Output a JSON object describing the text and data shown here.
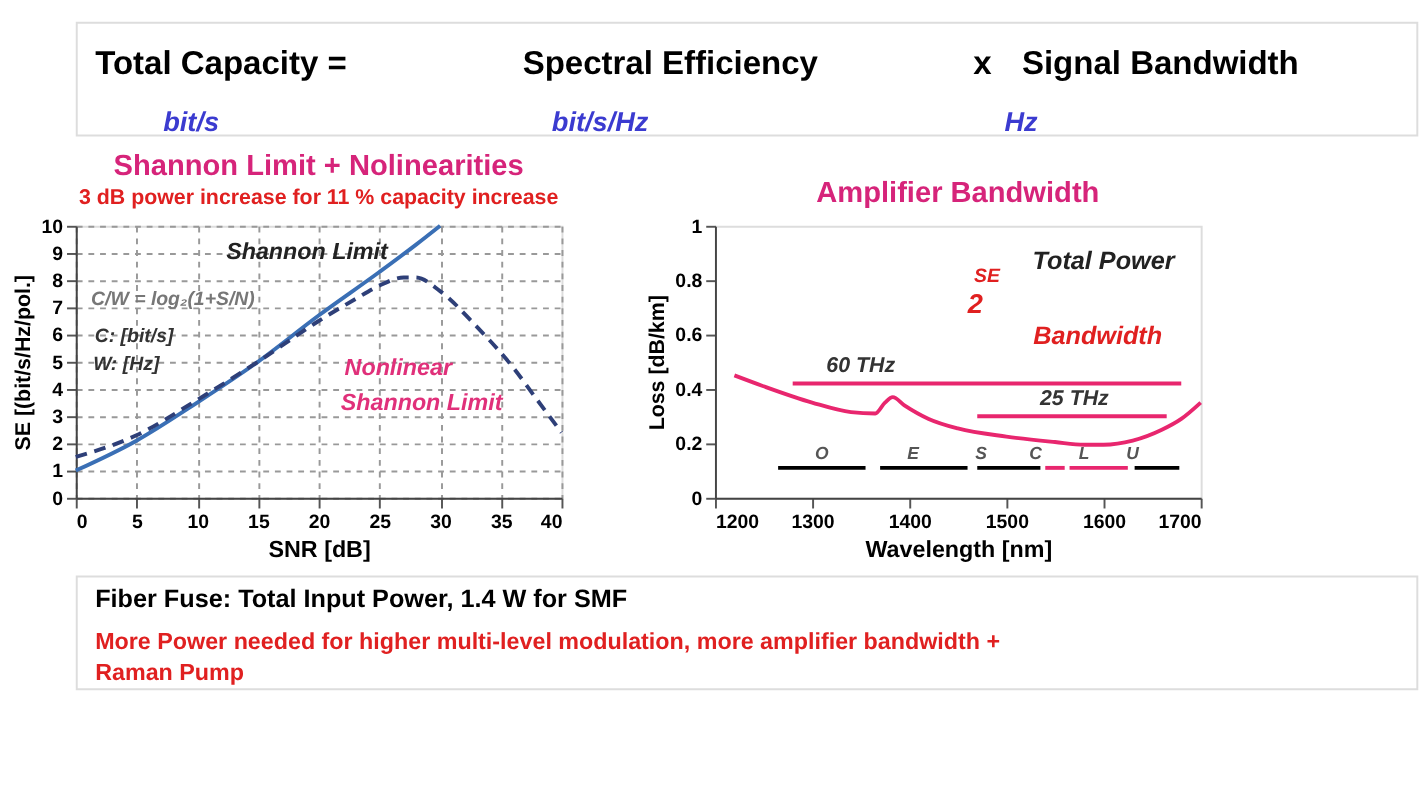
{
  "chart_data": [
    {
      "type": "other",
      "annotations": [
        "Total Capacity =",
        "Spectral Efficiency",
        "x",
        "Signal Bandwidth",
        "bit/s",
        "bit/s/Hz",
        "Hz"
      ]
    },
    {
      "type": "line",
      "title": "Shannon Limit + Nolinearities",
      "subtitle": "3 dB power increase for 11 % capacity increase",
      "xlabel": "SNR [dB]",
      "ylabel": "SE [(bit/s/Hz/pol.]",
      "xlim": [
        0,
        40
      ],
      "xticks": [
        0,
        5,
        10,
        15,
        20,
        25,
        30,
        35,
        40
      ],
      "ylim": [
        0,
        10
      ],
      "yticks": [
        0,
        1,
        2,
        3,
        4,
        5,
        6,
        7,
        8,
        9,
        10
      ],
      "grid": true,
      "marker": "none",
      "series": [
        {
          "color": "#3a6fb5",
          "line_style": "solid",
          "x": [
            0,
            5,
            10,
            15,
            20,
            25,
            28,
            30
          ],
          "values": [
            1,
            2.1,
            3.5,
            5,
            6.7,
            8.3,
            9.3,
            10
          ]
        },
        {
          "color": "#2e3f78",
          "line_style": "dashed",
          "x": [
            0,
            5,
            10,
            15,
            20,
            23,
            25,
            27,
            28,
            30,
            33,
            36,
            38,
            40
          ],
          "values": [
            1.5,
            2.3,
            3.6,
            5,
            6.5,
            7.3,
            7.8,
            8.1,
            8.1,
            7.6,
            6.3,
            4.8,
            3.6,
            2.4
          ]
        }
      ],
      "annotations": [
        "Shannon Limit",
        "C/W = log₂(1+S/N)",
        "C: [bit/s]",
        "W: [Hz]",
        "Nonlinear",
        "Shannon Limit"
      ]
    },
    {
      "type": "line",
      "title": "Amplifier Bandwidth",
      "xlabel": "Wavelength [nm]",
      "ylabel": "Loss [dB/km]",
      "xlim": [
        1200,
        1700
      ],
      "xticks": [
        1200,
        1300,
        1400,
        1500,
        1600,
        1700
      ],
      "ylim": [
        0,
        1
      ],
      "yticks": [
        0,
        0.2,
        0.4,
        0.6,
        0.8,
        1
      ],
      "grid": false,
      "marker": "none",
      "series": [
        {
          "color": "#e8266e",
          "x": [
            1220,
            1250,
            1300,
            1340,
            1365,
            1375,
            1383,
            1395,
            1420,
            1450,
            1500,
            1550,
            1580,
            1600,
            1630,
            1660,
            1680,
            1700
          ],
          "values": [
            0.45,
            0.41,
            0.35,
            0.315,
            0.31,
            0.35,
            0.37,
            0.34,
            0.29,
            0.255,
            0.225,
            0.205,
            0.195,
            0.195,
            0.21,
            0.25,
            0.29,
            0.35
          ]
        },
        {
          "color": "#e8266e",
          "x": [
            1280,
            1680
          ],
          "values": [
            0.42,
            0.42
          ]
        },
        {
          "color": "#e8266e",
          "x": [
            1470,
            1665
          ],
          "values": [
            0.3,
            0.3
          ]
        },
        {
          "color": "#000000",
          "x": [
            1265,
            1355
          ],
          "values": [
            0.11,
            0.11
          ]
        },
        {
          "color": "#000000",
          "x": [
            1370,
            1460
          ],
          "values": [
            0.11,
            0.11
          ]
        },
        {
          "color": "#000000",
          "x": [
            1470,
            1535
          ],
          "values": [
            0.11,
            0.11
          ]
        },
        {
          "color": "#e8266e",
          "x": [
            1540,
            1560
          ],
          "values": [
            0.11,
            0.11
          ]
        },
        {
          "color": "#e8266e",
          "x": [
            1565,
            1625
          ],
          "values": [
            0.11,
            0.11
          ]
        },
        {
          "color": "#000000",
          "x": [
            1632,
            1678
          ],
          "values": [
            0.11,
            0.11
          ]
        }
      ],
      "annotations": [
        "60 THz",
        "25 THz",
        "O",
        "E",
        "S",
        "C",
        "L",
        "U",
        "Total Power",
        "SE",
        "2",
        "Bandwidth"
      ]
    },
    {
      "type": "other",
      "annotations": [
        "Fiber Fuse: Total Input Power, 1.4 W for SMF",
        "More Power needed for higher multi-level modulation, more amplifier bandwidth +",
        "Raman Pump"
      ]
    }
  ]
}
